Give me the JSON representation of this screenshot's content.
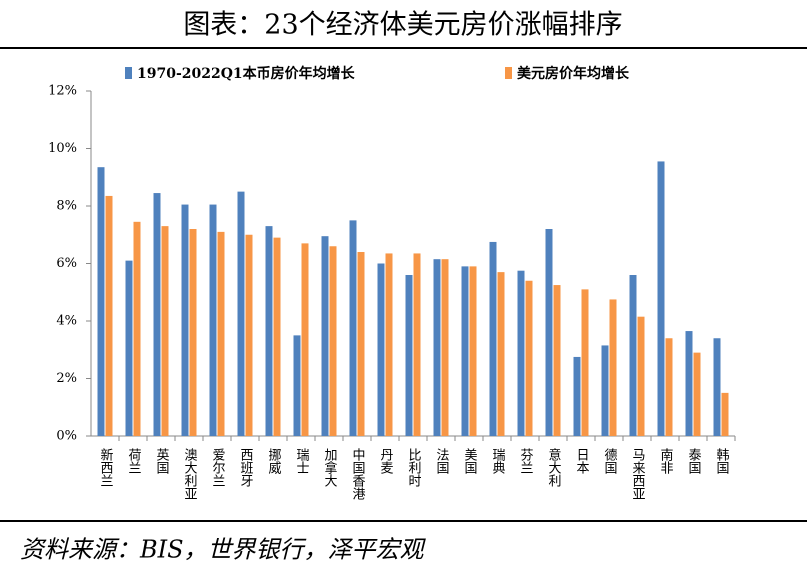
{
  "chart_data": {
    "type": "bar",
    "title": "图表：23个经济体美元房价涨幅排序",
    "categories": [
      "新西兰",
      "荷兰",
      "英国",
      "澳大利亚",
      "爱尔兰",
      "西班牙",
      "挪威",
      "瑞士",
      "加拿大",
      "中国香港",
      "丹麦",
      "比利时",
      "法国",
      "美国",
      "瑞典",
      "芬兰",
      "意大利",
      "日本",
      "德国",
      "马来西亚",
      "南非",
      "泰国",
      "韩国"
    ],
    "series": [
      {
        "name": "1970-2022Q1本币房价年均增长",
        "color": "#4f81bd",
        "values": [
          9.35,
          6.1,
          8.45,
          8.05,
          8.05,
          8.5,
          7.3,
          3.5,
          6.95,
          7.5,
          6.0,
          5.6,
          6.15,
          5.9,
          6.75,
          5.75,
          7.2,
          2.75,
          3.15,
          5.6,
          9.55,
          3.65,
          3.4
        ]
      },
      {
        "name": "美元房价年均增长",
        "color": "#f79646",
        "values": [
          8.35,
          7.45,
          7.3,
          7.2,
          7.1,
          7.0,
          6.9,
          6.7,
          6.6,
          6.4,
          6.35,
          6.35,
          6.15,
          5.9,
          5.7,
          5.4,
          5.25,
          5.1,
          4.75,
          4.15,
          3.4,
          2.9,
          1.5
        ]
      }
    ],
    "ylim": [
      0,
      12
    ],
    "yticks": [
      {
        "value": 0,
        "label": "0%"
      },
      {
        "value": 2,
        "label": "2%"
      },
      {
        "value": 4,
        "label": "4%"
      },
      {
        "value": 6,
        "label": "6%"
      },
      {
        "value": 8,
        "label": "8%"
      },
      {
        "value": 10,
        "label": "10%"
      },
      {
        "value": 12,
        "label": "12%"
      }
    ],
    "source": "资料来源：BIS，世界银行，泽平宏观"
  }
}
